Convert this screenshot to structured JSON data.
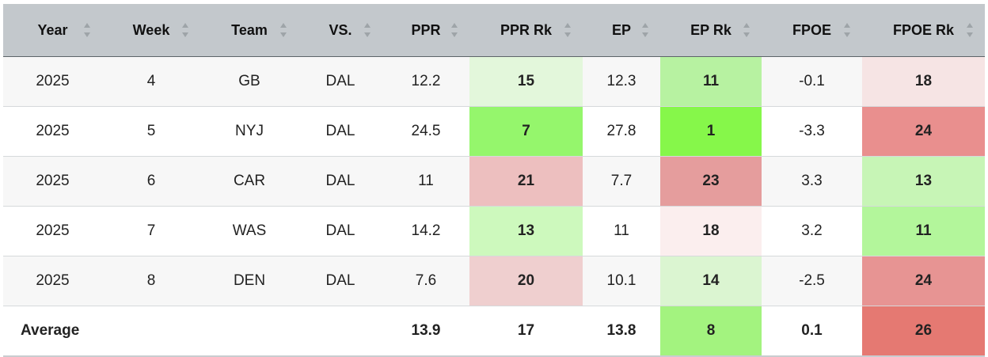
{
  "columns": [
    "Year",
    "Week",
    "Team",
    "VS.",
    "PPR",
    "PPR Rk",
    "EP",
    "EP Rk",
    "FPOE",
    "FPOE Rk"
  ],
  "sort_icon": "sort-updown-icon",
  "rows": [
    {
      "year": "2025",
      "week": "4",
      "team": "GB",
      "vs": "DAL",
      "ppr": "12.2",
      "ppr_rk": "15",
      "ep": "12.3",
      "ep_rk": "11",
      "fpoe": "-0.1",
      "fpoe_rk": "18",
      "ppr_rk_color": "#e3f7db",
      "ep_rk_color": "#b7f2a1",
      "fpoe_rk_color": "#f6e4e4"
    },
    {
      "year": "2025",
      "week": "5",
      "team": "NYJ",
      "vs": "DAL",
      "ppr": "24.5",
      "ppr_rk": "7",
      "ep": "27.8",
      "ep_rk": "1",
      "fpoe": "-3.3",
      "fpoe_rk": "24",
      "ppr_rk_color": "#95f66c",
      "ep_rk_color": "#86f74a",
      "fpoe_rk_color": "#e98f8e"
    },
    {
      "year": "2025",
      "week": "6",
      "team": "CAR",
      "vs": "DAL",
      "ppr": "11",
      "ppr_rk": "21",
      "ep": "7.7",
      "ep_rk": "23",
      "fpoe": "3.3",
      "fpoe_rk": "13",
      "ppr_rk_color": "#edbfbf",
      "ep_rk_color": "#e59d9d",
      "fpoe_rk_color": "#c7f5b6"
    },
    {
      "year": "2025",
      "week": "7",
      "team": "WAS",
      "vs": "DAL",
      "ppr": "14.2",
      "ppr_rk": "13",
      "ep": "11",
      "ep_rk": "18",
      "fpoe": "3.2",
      "fpoe_rk": "11",
      "ppr_rk_color": "#cdf9bd",
      "ep_rk_color": "#fbeeee",
      "fpoe_rk_color": "#b3f69b"
    },
    {
      "year": "2025",
      "week": "8",
      "team": "DEN",
      "vs": "DAL",
      "ppr": "7.6",
      "ppr_rk": "20",
      "ep": "10.1",
      "ep_rk": "14",
      "fpoe": "-2.5",
      "fpoe_rk": "24",
      "ppr_rk_color": "#efcfcf",
      "ep_rk_color": "#dbf5d1",
      "fpoe_rk_color": "#e79493"
    }
  ],
  "average": {
    "label": "Average",
    "ppr": "13.9",
    "ppr_rk": "17",
    "ep": "13.8",
    "ep_rk": "8",
    "fpoe": "0.1",
    "fpoe_rk": "26",
    "ep_rk_color": "#a3f37f",
    "fpoe_rk_color": "#e57972"
  }
}
